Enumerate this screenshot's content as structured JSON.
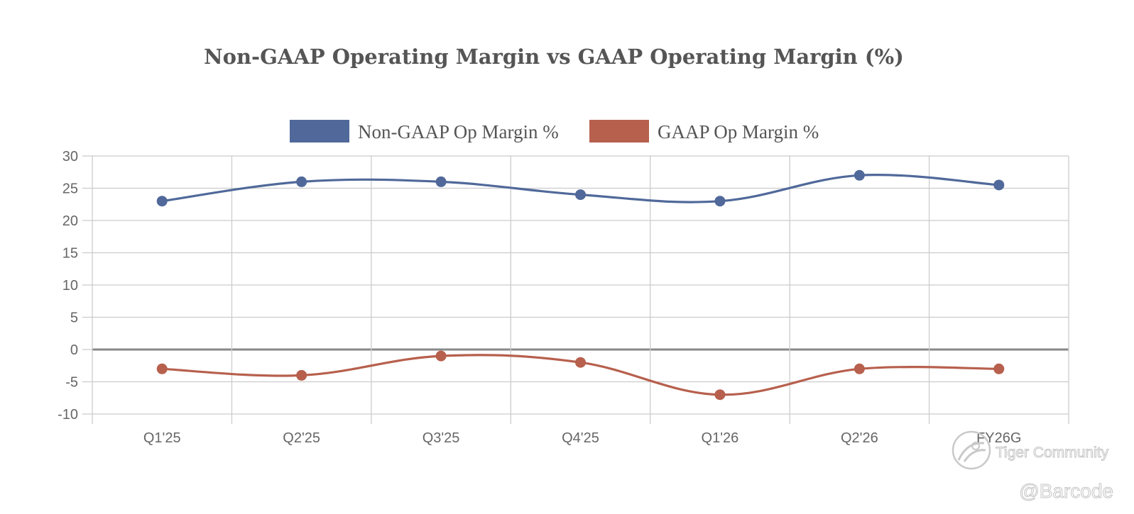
{
  "chart_data": {
    "type": "line",
    "title": "Non-GAAP Operating Margin vs GAAP Operating Margin (%)",
    "categories": [
      "Q1'25",
      "Q2'25",
      "Q3'25",
      "Q4'25",
      "Q1'26",
      "Q2'26",
      "FY26G"
    ],
    "series": [
      {
        "name": "Non-GAAP Op Margin %",
        "color": "#50699a",
        "values": [
          23,
          26,
          26,
          24,
          23,
          27,
          25.5
        ]
      },
      {
        "name": "GAAP Op Margin %",
        "color": "#b7604d",
        "values": [
          -3,
          -4,
          -1,
          -2,
          -7,
          -3,
          -3
        ]
      }
    ],
    "ylim": [
      -10,
      30
    ],
    "yticks": [
      30,
      25,
      20,
      15,
      10,
      5,
      0,
      -5,
      -10
    ],
    "xlabel": "",
    "ylabel": "",
    "grid": true,
    "legend": "top-center"
  },
  "watermark": {
    "brand": "Tiger Community",
    "handle": "@Barcode",
    "icon": "tiger-logo-icon"
  }
}
